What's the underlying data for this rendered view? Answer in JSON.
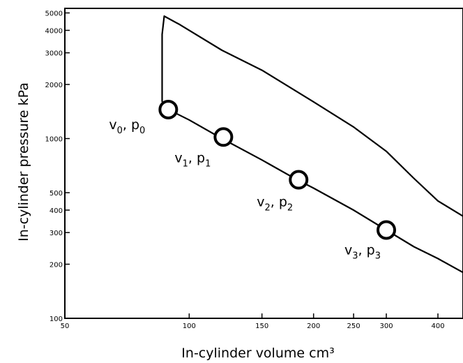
{
  "chart_data": {
    "type": "line",
    "title": "",
    "xlabel": "In-cylinder volume cm³",
    "ylabel": "In-cylinder pressure kPa",
    "x_scale": "log",
    "y_scale": "log",
    "xlim": [
      50,
      460
    ],
    "ylim": [
      100,
      5300
    ],
    "x_ticks": [
      50,
      100,
      150,
      200,
      250,
      300,
      400
    ],
    "y_ticks": [
      100,
      200,
      300,
      400,
      500,
      1000,
      2000,
      3000,
      4000,
      5000
    ],
    "series": [
      {
        "values": [
          {
            "x": 86,
            "y": 1600
          },
          {
            "x": 86,
            "y": 3800
          },
          {
            "x": 87,
            "y": 4800
          },
          {
            "x": 95,
            "y": 4300
          },
          {
            "x": 120,
            "y": 3100
          },
          {
            "x": 150,
            "y": 2400
          },
          {
            "x": 200,
            "y": 1600
          },
          {
            "x": 250,
            "y": 1160
          },
          {
            "x": 300,
            "y": 850
          },
          {
            "x": 350,
            "y": 600
          },
          {
            "x": 400,
            "y": 450
          },
          {
            "x": 460,
            "y": 370
          }
        ]
      },
      {
        "values": [
          {
            "x": 86,
            "y": 1600
          },
          {
            "x": 89,
            "y": 1450
          },
          {
            "x": 100,
            "y": 1270
          },
          {
            "x": 120,
            "y": 1000
          },
          {
            "x": 150,
            "y": 760
          },
          {
            "x": 180,
            "y": 600
          },
          {
            "x": 200,
            "y": 530
          },
          {
            "x": 250,
            "y": 400
          },
          {
            "x": 300,
            "y": 310
          },
          {
            "x": 350,
            "y": 250
          },
          {
            "x": 400,
            "y": 215
          },
          {
            "x": 460,
            "y": 180
          }
        ]
      }
    ],
    "markers": [
      {
        "x": 89,
        "y": 1450,
        "label": "v",
        "label_sub": "0",
        "label2": ", p",
        "label2_sub": "0"
      },
      {
        "x": 121,
        "y": 1020,
        "label": "v",
        "label_sub": "1",
        "label2": ", p",
        "label2_sub": "1"
      },
      {
        "x": 184,
        "y": 590,
        "label": "v",
        "label_sub": "2",
        "label2": ", p",
        "label2_sub": "2"
      },
      {
        "x": 300,
        "y": 310,
        "label": "v",
        "label_sub": "3",
        "label2": ", p",
        "label2_sub": "3"
      }
    ]
  }
}
